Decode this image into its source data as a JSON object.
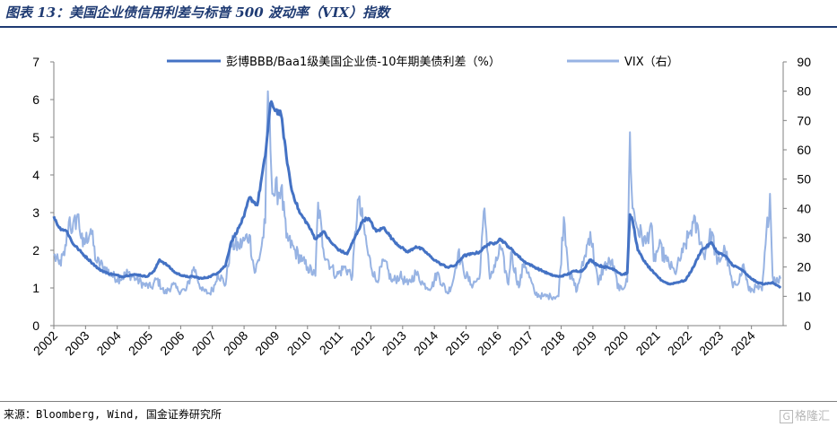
{
  "title": "图表 13：美国企业债信用利差与标普 500 波动率（VIX）指数",
  "source": "来源：Bloomberg, Wind, 国金证券研究所",
  "watermark": "格隆汇",
  "watermark_badge": "G",
  "colors": {
    "spread": "#4472c4",
    "vix": "#97b3e3",
    "title": "#1f3b73"
  },
  "chart_data": {
    "type": "line",
    "x_start": "2002-01",
    "x_end": "2024-12",
    "x_tick_labels": [
      "2002",
      "2003",
      "2004",
      "2005",
      "2006",
      "2007",
      "2008",
      "2009",
      "2010",
      "2011",
      "2012",
      "2013",
      "2014",
      "2015",
      "2016",
      "2017",
      "2018",
      "2019",
      "2020",
      "2021",
      "2022",
      "2023",
      "2024"
    ],
    "y_left": {
      "min": 0,
      "max": 7,
      "ticks": [
        "0",
        "1",
        "2",
        "3",
        "4",
        "5",
        "6",
        "7"
      ]
    },
    "y_right": {
      "min": 0,
      "max": 90,
      "ticks": [
        "0",
        "10",
        "20",
        "30",
        "40",
        "50",
        "60",
        "70",
        "80",
        "90"
      ]
    },
    "legend_position": "top",
    "series": [
      {
        "name": "彭博BBB/Baa1级美国企业债-10年期美债利差（%）",
        "axis": "left",
        "points": [
          [
            "2002-01",
            2.9
          ],
          [
            "2002-03",
            2.6
          ],
          [
            "2002-06",
            2.5
          ],
          [
            "2002-08",
            2.2
          ],
          [
            "2002-10",
            2.05
          ],
          [
            "2002-12",
            1.9
          ],
          [
            "2003-03",
            1.7
          ],
          [
            "2003-06",
            1.5
          ],
          [
            "2003-09",
            1.4
          ],
          [
            "2003-12",
            1.35
          ],
          [
            "2004-03",
            1.3
          ],
          [
            "2004-06",
            1.35
          ],
          [
            "2004-09",
            1.35
          ],
          [
            "2004-12",
            1.3
          ],
          [
            "2005-03",
            1.45
          ],
          [
            "2005-05",
            1.75
          ],
          [
            "2005-08",
            1.6
          ],
          [
            "2005-11",
            1.4
          ],
          [
            "2006-03",
            1.3
          ],
          [
            "2006-06",
            1.3
          ],
          [
            "2006-09",
            1.25
          ],
          [
            "2006-12",
            1.3
          ],
          [
            "2007-03",
            1.4
          ],
          [
            "2007-06",
            1.6
          ],
          [
            "2007-08",
            2.2
          ],
          [
            "2007-11",
            2.6
          ],
          [
            "2008-01",
            2.9
          ],
          [
            "2008-03",
            3.4
          ],
          [
            "2008-06",
            3.2
          ],
          [
            "2008-09",
            4.5
          ],
          [
            "2008-11",
            5.9
          ],
          [
            "2008-12",
            5.8
          ],
          [
            "2009-03",
            5.6
          ],
          [
            "2009-05",
            4.5
          ],
          [
            "2009-07",
            3.6
          ],
          [
            "2009-10",
            3.0
          ],
          [
            "2010-01",
            2.7
          ],
          [
            "2010-04",
            2.3
          ],
          [
            "2010-07",
            2.5
          ],
          [
            "2010-10",
            2.2
          ],
          [
            "2011-01",
            2.0
          ],
          [
            "2011-04",
            1.9
          ],
          [
            "2011-08",
            2.5
          ],
          [
            "2011-10",
            2.8
          ],
          [
            "2011-12",
            2.85
          ],
          [
            "2012-03",
            2.5
          ],
          [
            "2012-06",
            2.6
          ],
          [
            "2012-09",
            2.3
          ],
          [
            "2012-12",
            2.1
          ],
          [
            "2013-03",
            1.95
          ],
          [
            "2013-06",
            2.1
          ],
          [
            "2013-09",
            2.0
          ],
          [
            "2013-12",
            1.8
          ],
          [
            "2014-03",
            1.65
          ],
          [
            "2014-06",
            1.55
          ],
          [
            "2014-09",
            1.6
          ],
          [
            "2014-12",
            1.85
          ],
          [
            "2015-03",
            1.9
          ],
          [
            "2015-06",
            1.95
          ],
          [
            "2015-09",
            2.15
          ],
          [
            "2015-12",
            2.2
          ],
          [
            "2016-02",
            2.3
          ],
          [
            "2016-05",
            2.1
          ],
          [
            "2016-08",
            1.9
          ],
          [
            "2016-11",
            1.7
          ],
          [
            "2017-03",
            1.55
          ],
          [
            "2017-06",
            1.45
          ],
          [
            "2017-09",
            1.35
          ],
          [
            "2017-12",
            1.3
          ],
          [
            "2018-03",
            1.35
          ],
          [
            "2018-06",
            1.45
          ],
          [
            "2018-09",
            1.45
          ],
          [
            "2018-12",
            1.75
          ],
          [
            "2019-03",
            1.6
          ],
          [
            "2019-06",
            1.55
          ],
          [
            "2019-09",
            1.5
          ],
          [
            "2019-12",
            1.35
          ],
          [
            "2020-02",
            1.4
          ],
          [
            "2020-03",
            2.95
          ],
          [
            "2020-04",
            2.8
          ],
          [
            "2020-06",
            2.0
          ],
          [
            "2020-09",
            1.65
          ],
          [
            "2020-12",
            1.4
          ],
          [
            "2021-03",
            1.2
          ],
          [
            "2021-06",
            1.1
          ],
          [
            "2021-09",
            1.15
          ],
          [
            "2021-12",
            1.2
          ],
          [
            "2022-03",
            1.55
          ],
          [
            "2022-06",
            2.0
          ],
          [
            "2022-08",
            2.1
          ],
          [
            "2022-10",
            2.2
          ],
          [
            "2022-12",
            1.95
          ],
          [
            "2023-03",
            1.85
          ],
          [
            "2023-06",
            1.6
          ],
          [
            "2023-09",
            1.5
          ],
          [
            "2023-12",
            1.3
          ],
          [
            "2024-03",
            1.15
          ],
          [
            "2024-06",
            1.1
          ],
          [
            "2024-09",
            1.15
          ],
          [
            "2024-12",
            1.0
          ]
        ]
      },
      {
        "name": "VIX（右）",
        "axis": "right",
        "points": [
          [
            "2002-01",
            24
          ],
          [
            "2002-03",
            21
          ],
          [
            "2002-05",
            24
          ],
          [
            "2002-07",
            37
          ],
          [
            "2002-08",
            32
          ],
          [
            "2002-10",
            38
          ],
          [
            "2002-12",
            27
          ],
          [
            "2003-03",
            33
          ],
          [
            "2003-05",
            22
          ],
          [
            "2003-08",
            20
          ],
          [
            "2003-11",
            17
          ],
          [
            "2004-02",
            16
          ],
          [
            "2004-05",
            18
          ],
          [
            "2004-08",
            16
          ],
          [
            "2004-11",
            14
          ],
          [
            "2005-02",
            13
          ],
          [
            "2005-04",
            16
          ],
          [
            "2005-07",
            11
          ],
          [
            "2005-10",
            14
          ],
          [
            "2005-12",
            12
          ],
          [
            "2006-03",
            12
          ],
          [
            "2006-06",
            20
          ],
          [
            "2006-09",
            12
          ],
          [
            "2006-12",
            11
          ],
          [
            "2007-02",
            14
          ],
          [
            "2007-03",
            18
          ],
          [
            "2007-06",
            14
          ],
          [
            "2007-08",
            28
          ],
          [
            "2007-11",
            27
          ],
          [
            "2008-01",
            29
          ],
          [
            "2008-03",
            31
          ],
          [
            "2008-05",
            18
          ],
          [
            "2008-07",
            24
          ],
          [
            "2008-09",
            35
          ],
          [
            "2008-10",
            80
          ],
          [
            "2008-11",
            60
          ],
          [
            "2008-12",
            45
          ],
          [
            "2009-03",
            47
          ],
          [
            "2009-05",
            30
          ],
          [
            "2009-08",
            26
          ],
          [
            "2009-11",
            22
          ],
          [
            "2010-01",
            20
          ],
          [
            "2010-04",
            17
          ],
          [
            "2010-05",
            42
          ],
          [
            "2010-07",
            26
          ],
          [
            "2010-10",
            20
          ],
          [
            "2010-12",
            17
          ],
          [
            "2011-03",
            20
          ],
          [
            "2011-06",
            17
          ],
          [
            "2011-08",
            43
          ],
          [
            "2011-10",
            35
          ],
          [
            "2011-12",
            24
          ],
          [
            "2012-03",
            15
          ],
          [
            "2012-06",
            22
          ],
          [
            "2012-09",
            15
          ],
          [
            "2012-12",
            17
          ],
          [
            "2013-03",
            14
          ],
          [
            "2013-06",
            18
          ],
          [
            "2013-09",
            14
          ],
          [
            "2013-12",
            13
          ],
          [
            "2014-02",
            18
          ],
          [
            "2014-06",
            11
          ],
          [
            "2014-08",
            15
          ],
          [
            "2014-10",
            25
          ],
          [
            "2014-12",
            19
          ],
          [
            "2015-03",
            14
          ],
          [
            "2015-06",
            16
          ],
          [
            "2015-08",
            40
          ],
          [
            "2015-10",
            16
          ],
          [
            "2015-12",
            20
          ],
          [
            "2016-02",
            27
          ],
          [
            "2016-05",
            14
          ],
          [
            "2016-06",
            25
          ],
          [
            "2016-09",
            13
          ],
          [
            "2016-11",
            22
          ],
          [
            "2017-03",
            11
          ],
          [
            "2017-06",
            10
          ],
          [
            "2017-09",
            10
          ],
          [
            "2017-12",
            10
          ],
          [
            "2018-02",
            37
          ],
          [
            "2018-04",
            18
          ],
          [
            "2018-07",
            12
          ],
          [
            "2018-10",
            24
          ],
          [
            "2018-12",
            32
          ],
          [
            "2019-03",
            14
          ],
          [
            "2019-05",
            20
          ],
          [
            "2019-08",
            22
          ],
          [
            "2019-11",
            12
          ],
          [
            "2020-02",
            15
          ],
          [
            "2020-03",
            66
          ],
          [
            "2020-04",
            40
          ],
          [
            "2020-06",
            33
          ],
          [
            "2020-09",
            28
          ],
          [
            "2020-11",
            35
          ],
          [
            "2020-12",
            22
          ],
          [
            "2021-02",
            27
          ],
          [
            "2021-05",
            22
          ],
          [
            "2021-08",
            18
          ],
          [
            "2021-11",
            25
          ],
          [
            "2022-01",
            30
          ],
          [
            "2022-03",
            35
          ],
          [
            "2022-05",
            32
          ],
          [
            "2022-07",
            24
          ],
          [
            "2022-10",
            32
          ],
          [
            "2022-12",
            21
          ],
          [
            "2023-03",
            26
          ],
          [
            "2023-06",
            13
          ],
          [
            "2023-09",
            17
          ],
          [
            "2023-10",
            21
          ],
          [
            "2023-12",
            12
          ],
          [
            "2024-03",
            13
          ],
          [
            "2024-05",
            12
          ],
          [
            "2024-08",
            45
          ],
          [
            "2024-09",
            17
          ],
          [
            "2024-11",
            15
          ],
          [
            "2024-12",
            16
          ]
        ]
      }
    ]
  }
}
